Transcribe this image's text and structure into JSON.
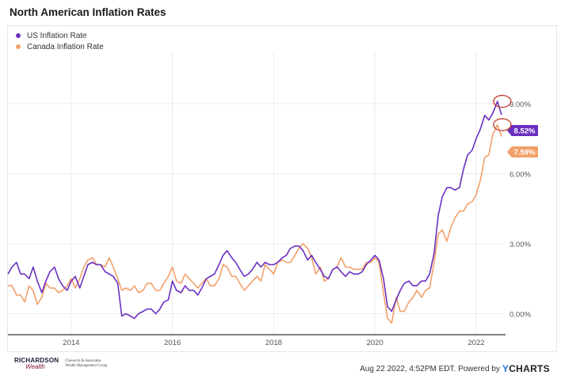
{
  "title": "North American Inflation Rates",
  "footer": {
    "brand_top": "RICHARDSON",
    "brand_bottom": "Wealth",
    "brand_sub": "Cheswick & Associates Wealth Management Group",
    "timestamp": "Aug 22 2022, 4:52PM EDT.",
    "powered_by": "Powered by",
    "ycharts_y": "Y",
    "ycharts_rest": "CHARTS"
  },
  "chart_data": {
    "type": "line",
    "title": "North American Inflation Rates",
    "xlabel": "",
    "ylabel": "",
    "x_range": [
      2012.75,
      2022.58
    ],
    "ylim": [
      -0.9,
      10.9
    ],
    "y_ticks": [
      0,
      3,
      6,
      9
    ],
    "y_tick_labels": [
      "0.00%",
      "3.00%",
      "6.00%",
      "9.00%"
    ],
    "x_ticks": [
      2014,
      2016,
      2018,
      2020,
      2022
    ],
    "x_tick_labels": [
      "2014",
      "2016",
      "2018",
      "2020",
      "2022"
    ],
    "grid": true,
    "legend_position": "top-left",
    "series": [
      {
        "name": "US Inflation Rate",
        "color": "#6a2fc0",
        "end_label": "8.52%",
        "x": [
          2012.75,
          2012.83,
          2012.92,
          2013.0,
          2013.08,
          2013.17,
          2013.25,
          2013.33,
          2013.42,
          2013.5,
          2013.58,
          2013.67,
          2013.75,
          2013.83,
          2013.92,
          2014.0,
          2014.08,
          2014.17,
          2014.25,
          2014.33,
          2014.42,
          2014.5,
          2014.58,
          2014.67,
          2014.75,
          2014.83,
          2014.92,
          2015.0,
          2015.08,
          2015.17,
          2015.25,
          2015.33,
          2015.42,
          2015.5,
          2015.58,
          2015.67,
          2015.75,
          2015.83,
          2015.92,
          2016.0,
          2016.08,
          2016.17,
          2016.25,
          2016.33,
          2016.42,
          2016.5,
          2016.58,
          2016.67,
          2016.75,
          2016.83,
          2016.92,
          2017.0,
          2017.08,
          2017.17,
          2017.25,
          2017.33,
          2017.42,
          2017.5,
          2017.58,
          2017.67,
          2017.75,
          2017.83,
          2017.92,
          2018.0,
          2018.08,
          2018.17,
          2018.25,
          2018.33,
          2018.42,
          2018.5,
          2018.58,
          2018.67,
          2018.75,
          2018.83,
          2018.92,
          2019.0,
          2019.08,
          2019.17,
          2019.25,
          2019.33,
          2019.42,
          2019.5,
          2019.58,
          2019.67,
          2019.75,
          2019.83,
          2019.92,
          2020.0,
          2020.08,
          2020.17,
          2020.25,
          2020.33,
          2020.42,
          2020.5,
          2020.58,
          2020.67,
          2020.75,
          2020.83,
          2020.92,
          2021.0,
          2021.08,
          2021.17,
          2021.25,
          2021.33,
          2021.42,
          2021.5,
          2021.58,
          2021.67,
          2021.75,
          2021.83,
          2021.92,
          2022.0,
          2022.08,
          2022.17,
          2022.25,
          2022.33,
          2022.42,
          2022.5
        ],
        "values": [
          1.7,
          2.0,
          2.2,
          1.7,
          1.7,
          1.5,
          2.0,
          1.4,
          0.9,
          1.4,
          1.8,
          2.0,
          1.5,
          1.2,
          1.0,
          1.4,
          1.6,
          1.1,
          1.6,
          2.1,
          2.2,
          2.1,
          2.1,
          1.8,
          1.7,
          1.6,
          1.3,
          -0.1,
          0.0,
          -0.1,
          -0.2,
          0.0,
          0.1,
          0.2,
          0.2,
          0.0,
          0.2,
          0.5,
          0.6,
          1.4,
          1.0,
          0.9,
          1.2,
          1.0,
          1.0,
          0.8,
          1.1,
          1.5,
          1.6,
          1.7,
          2.1,
          2.5,
          2.7,
          2.4,
          2.2,
          1.9,
          1.6,
          1.7,
          1.9,
          2.2,
          2.0,
          2.2,
          2.1,
          2.1,
          2.2,
          2.4,
          2.5,
          2.8,
          2.9,
          2.9,
          2.7,
          2.3,
          2.5,
          2.2,
          1.9,
          1.6,
          1.5,
          1.9,
          2.0,
          1.8,
          1.6,
          1.8,
          1.7,
          1.7,
          1.8,
          2.1,
          2.3,
          2.5,
          2.3,
          1.5,
          0.3,
          0.1,
          0.6,
          1.0,
          1.3,
          1.4,
          1.2,
          1.2,
          1.4,
          1.4,
          1.7,
          2.6,
          4.2,
          5.0,
          5.4,
          5.4,
          5.3,
          5.4,
          6.2,
          6.8,
          7.0,
          7.5,
          7.9,
          8.5,
          8.3,
          8.6,
          9.1,
          8.52
        ]
      },
      {
        "name": "Canada Inflation Rate",
        "color": "#f2a06a",
        "end_label": "7.59%",
        "x": [
          2012.75,
          2012.83,
          2012.92,
          2013.0,
          2013.08,
          2013.17,
          2013.25,
          2013.33,
          2013.42,
          2013.5,
          2013.58,
          2013.67,
          2013.75,
          2013.83,
          2013.92,
          2014.0,
          2014.08,
          2014.17,
          2014.25,
          2014.33,
          2014.42,
          2014.5,
          2014.58,
          2014.67,
          2014.75,
          2014.83,
          2014.92,
          2015.0,
          2015.08,
          2015.17,
          2015.25,
          2015.33,
          2015.42,
          2015.5,
          2015.58,
          2015.67,
          2015.75,
          2015.83,
          2015.92,
          2016.0,
          2016.08,
          2016.17,
          2016.25,
          2016.33,
          2016.42,
          2016.5,
          2016.58,
          2016.67,
          2016.75,
          2016.83,
          2016.92,
          2017.0,
          2017.08,
          2017.17,
          2017.25,
          2017.33,
          2017.42,
          2017.5,
          2017.58,
          2017.67,
          2017.75,
          2017.83,
          2017.92,
          2018.0,
          2018.08,
          2018.17,
          2018.25,
          2018.33,
          2018.42,
          2018.5,
          2018.58,
          2018.67,
          2018.75,
          2018.83,
          2018.92,
          2019.0,
          2019.08,
          2019.17,
          2019.25,
          2019.33,
          2019.42,
          2019.5,
          2019.58,
          2019.67,
          2019.75,
          2019.83,
          2019.92,
          2020.0,
          2020.08,
          2020.17,
          2020.25,
          2020.33,
          2020.42,
          2020.5,
          2020.58,
          2020.67,
          2020.75,
          2020.83,
          2020.92,
          2021.0,
          2021.08,
          2021.17,
          2021.25,
          2021.33,
          2021.42,
          2021.5,
          2021.58,
          2021.67,
          2021.75,
          2021.83,
          2021.92,
          2022.0,
          2022.08,
          2022.17,
          2022.25,
          2022.33,
          2022.42,
          2022.5
        ],
        "values": [
          1.2,
          1.2,
          0.8,
          0.8,
          0.5,
          1.2,
          1.0,
          0.4,
          0.7,
          1.3,
          1.1,
          1.1,
          0.9,
          1.0,
          1.2,
          1.5,
          1.1,
          1.5,
          2.0,
          2.3,
          2.4,
          2.1,
          2.1,
          2.0,
          2.4,
          2.0,
          1.5,
          1.0,
          1.1,
          1.0,
          1.2,
          0.9,
          1.0,
          1.3,
          1.3,
          1.0,
          1.0,
          1.3,
          1.6,
          2.0,
          1.4,
          1.3,
          1.7,
          1.5,
          1.3,
          1.1,
          1.3,
          1.5,
          1.2,
          1.2,
          1.5,
          2.1,
          2.0,
          1.6,
          1.6,
          1.3,
          1.0,
          1.2,
          1.4,
          1.6,
          1.4,
          2.1,
          1.9,
          1.7,
          2.2,
          2.3,
          2.2,
          2.2,
          2.5,
          2.8,
          3.0,
          2.8,
          2.4,
          1.7,
          2.0,
          1.4,
          1.5,
          1.9,
          2.0,
          2.4,
          2.0,
          2.0,
          1.9,
          1.9,
          1.9,
          2.2,
          2.2,
          2.4,
          2.2,
          0.9,
          -0.2,
          -0.4,
          0.7,
          0.1,
          0.1,
          0.5,
          0.7,
          1.0,
          0.7,
          1.0,
          1.1,
          2.2,
          3.4,
          3.6,
          3.1,
          3.7,
          4.1,
          4.4,
          4.4,
          4.7,
          4.8,
          5.1,
          5.7,
          6.7,
          6.8,
          7.7,
          8.1,
          7.59
        ]
      }
    ],
    "highlighted_points": [
      "8.52%",
      "7.59%"
    ]
  }
}
